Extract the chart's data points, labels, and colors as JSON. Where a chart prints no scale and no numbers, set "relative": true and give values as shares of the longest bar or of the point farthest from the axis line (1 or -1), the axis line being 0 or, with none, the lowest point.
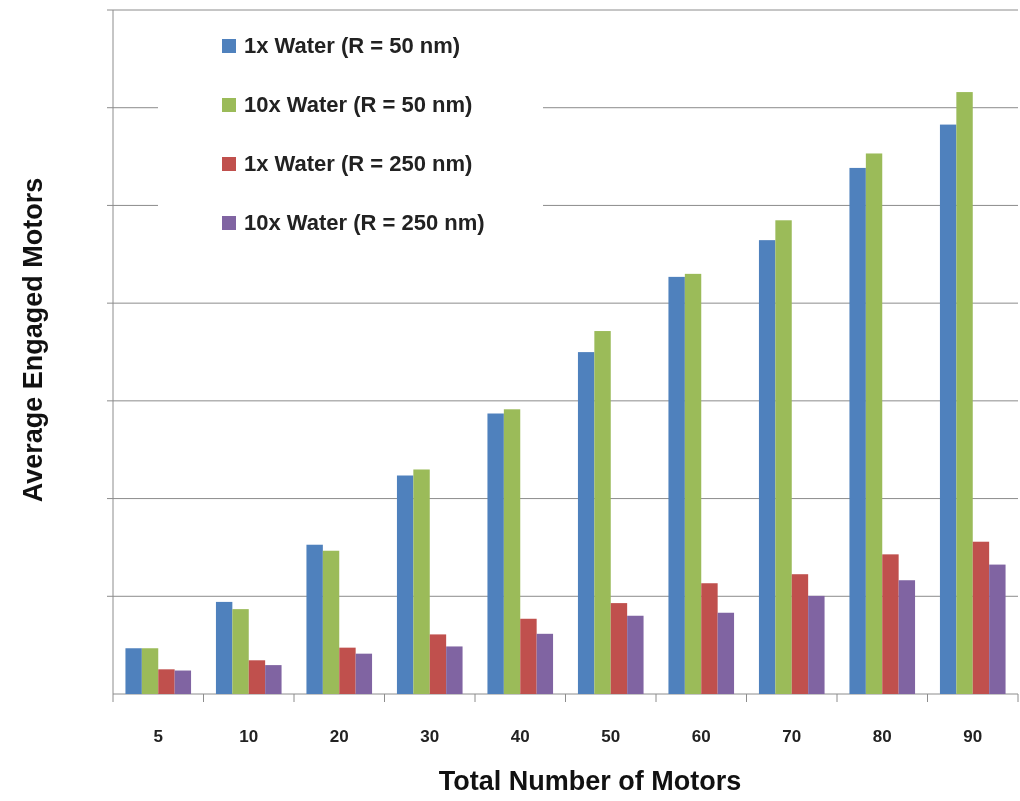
{
  "chart_data": {
    "type": "bar",
    "relative": true,
    "xlabel": "Total Number of Motors",
    "ylabel": "Average Engaged Motors",
    "grid": true,
    "legend": "top left",
    "categories": [
      "5",
      "10",
      "20",
      "30",
      "40",
      "50",
      "60",
      "70",
      "80",
      "90"
    ],
    "series": [
      {
        "name": "1x Water (R = 50 nm)",
        "color": "#4f81bd",
        "values": [
          0.076,
          0.153,
          0.248,
          0.363,
          0.466,
          0.568,
          0.693,
          0.754,
          0.874,
          0.946
        ]
      },
      {
        "name": "10x Water (R = 50 nm)",
        "color": "#9bbb59",
        "values": [
          0.076,
          0.141,
          0.238,
          0.373,
          0.473,
          0.603,
          0.698,
          0.787,
          0.898,
          1
        ]
      },
      {
        "name": "1x Water (R = 250 nm)",
        "color": "#c0504d",
        "values": [
          0.041,
          0.056,
          0.077,
          0.099,
          0.125,
          0.151,
          0.184,
          0.199,
          0.232,
          0.253
        ]
      },
      {
        "name": "10x Water (R = 250 nm)",
        "color": "#8064a2",
        "values": [
          0.039,
          0.048,
          0.067,
          0.079,
          0.1,
          0.13,
          0.135,
          0.163,
          0.189,
          0.215
        ]
      }
    ]
  }
}
